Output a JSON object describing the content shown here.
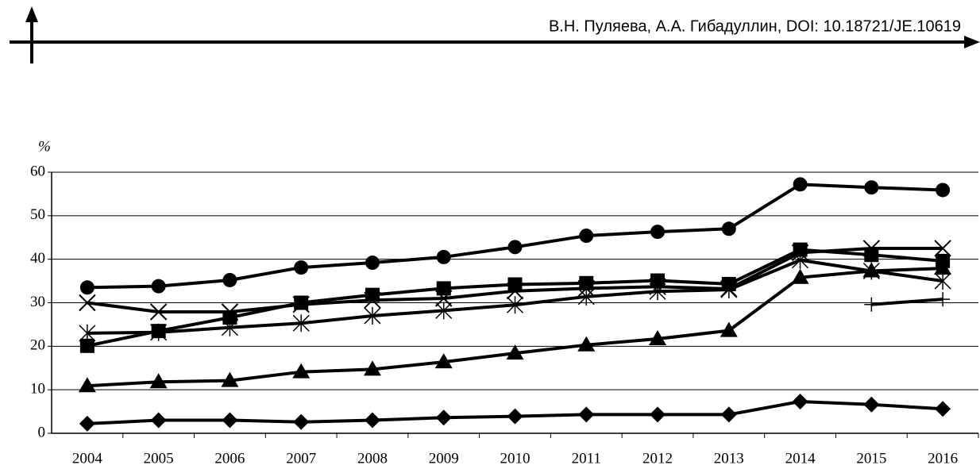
{
  "header": {
    "text": "В.Н. Пуляева, А.А. Гибадуллин, DOI: 10.18721/JE.10619"
  },
  "chart_data": {
    "type": "line",
    "y_label": "%",
    "categories": [
      "2004",
      "2005",
      "2006",
      "2007",
      "2008",
      "2009",
      "2010",
      "2011",
      "2012",
      "2013",
      "2014",
      "2015",
      "2016"
    ],
    "ylim": [
      0,
      60
    ],
    "yticks": [
      0,
      10,
      20,
      30,
      40,
      50,
      60
    ],
    "grid": true,
    "series": [
      {
        "color": "#000",
        "marker": "circle",
        "values": [
          33.5,
          33.8,
          35.2,
          38.1,
          39.2,
          40.5,
          42.8,
          45.4,
          46.3,
          47.0,
          57.2,
          56.5,
          55.9
        ]
      },
      {
        "color": "#000",
        "marker": "square",
        "values": [
          20.1,
          23.5,
          26.6,
          30.0,
          31.8,
          33.3,
          34.2,
          34.5,
          35.1,
          34.3,
          42.2,
          41.0,
          39.6
        ]
      },
      {
        "color": "#000",
        "marker": "x",
        "values": [
          30.0,
          27.9,
          27.9,
          29.6,
          30.6,
          31.0,
          32.7,
          33.3,
          33.7,
          33.2,
          41.5,
          42.5,
          42.5
        ]
      },
      {
        "color": "#000",
        "marker": "asterisk",
        "values": [
          23.0,
          23.2,
          24.3,
          25.3,
          27.0,
          28.2,
          29.5,
          31.4,
          32.6,
          33.0,
          39.8,
          37.3,
          35.0
        ]
      },
      {
        "color": "#000",
        "marker": "triangle",
        "values": [
          10.9,
          11.8,
          12.1,
          14.1,
          14.7,
          16.4,
          18.4,
          20.3,
          21.7,
          23.6,
          35.8,
          37.3,
          37.9
        ]
      },
      {
        "color": "#000",
        "marker": "plus",
        "values": [
          null,
          null,
          null,
          null,
          null,
          null,
          null,
          null,
          null,
          null,
          null,
          29.6,
          30.8
        ]
      },
      {
        "color": "#000",
        "marker": "diamond",
        "values": [
          2.2,
          3.0,
          3.0,
          2.6,
          3.0,
          3.6,
          3.9,
          4.3,
          4.3,
          4.3,
          7.3,
          6.6,
          5.6
        ]
      }
    ]
  }
}
